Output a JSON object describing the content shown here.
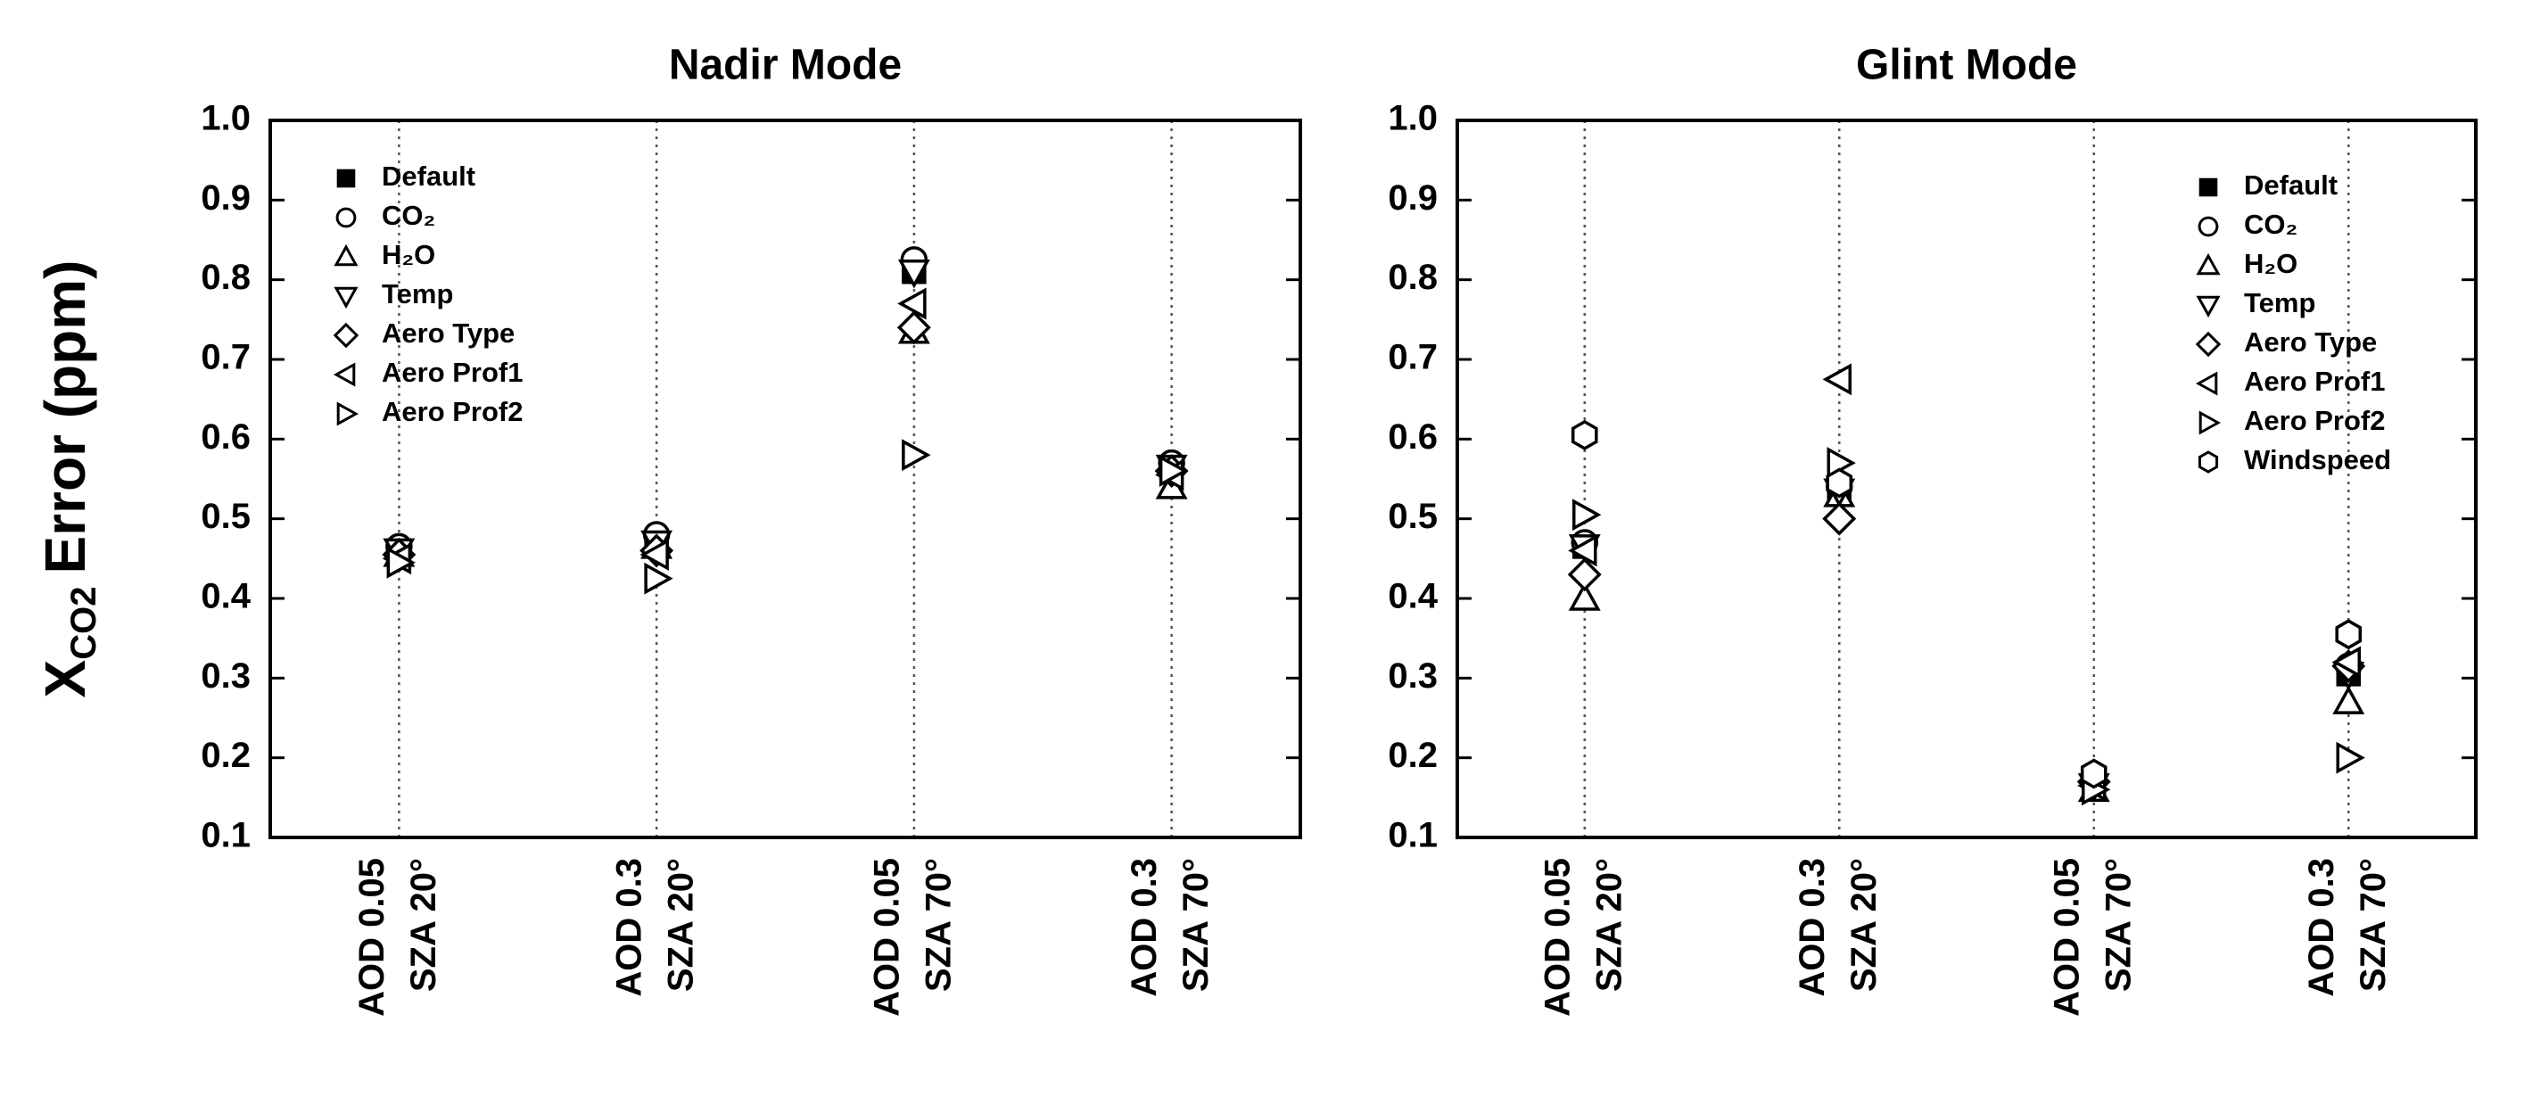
{
  "chart_data": [
    {
      "type": "scatter",
      "title": "Nadir Mode",
      "ylabel": [
        "X",
        "CO2",
        "Error (ppm)"
      ],
      "categories": [
        [
          "AOD 0.05",
          "SZA 20°"
        ],
        [
          "AOD 0.3",
          "SZA 20°"
        ],
        [
          "AOD 0.05",
          "SZA 70°"
        ],
        [
          "AOD 0.3",
          "SZA 70°"
        ]
      ],
      "ylim": [
        0.1,
        1
      ],
      "yticks": [
        0.1,
        0.2,
        0.3,
        0.4,
        0.5,
        0.6,
        0.7,
        0.8,
        0.9,
        {
          "value": 1,
          "label": "1.0"
        }
      ],
      "legend": "upper left",
      "series": [
        {
          "name": "Default",
          "color": "#000000",
          "marker": "square-filled",
          "values": [
            0.46,
            0.47,
            0.81,
            0.565
          ]
        },
        {
          "name": "CO₂",
          "color": "#000000",
          "marker": "circle",
          "values": [
            0.465,
            0.48,
            0.825,
            0.57
          ]
        },
        {
          "name": "H₂O",
          "color": "#000000",
          "marker": "triangle-up",
          "values": [
            0.455,
            0.465,
            0.735,
            0.54
          ]
        },
        {
          "name": "Temp",
          "color": "#000000",
          "marker": "triangle-down",
          "values": [
            0.46,
            0.47,
            0.81,
            0.565
          ]
        },
        {
          "name": "Aero Type",
          "color": "#000000",
          "marker": "diamond",
          "values": [
            0.455,
            0.46,
            0.74,
            0.56
          ]
        },
        {
          "name": "Aero Prof1",
          "color": "#000000",
          "marker": "triangle-left",
          "values": [
            0.45,
            0.455,
            0.77,
            0.555
          ]
        },
        {
          "name": "Aero Prof2",
          "color": "#000000",
          "marker": "triangle-right",
          "values": [
            0.445,
            0.425,
            0.58,
            0.56
          ]
        }
      ]
    },
    {
      "type": "scatter",
      "title": "Glint Mode",
      "categories": [
        [
          "AOD 0.05",
          "SZA 20°"
        ],
        [
          "AOD 0.3",
          "SZA 20°"
        ],
        [
          "AOD 0.05",
          "SZA 70°"
        ],
        [
          "AOD 0.3",
          "SZA 70°"
        ]
      ],
      "ylim": [
        0.1,
        1
      ],
      "yticks": [
        0.1,
        0.2,
        0.3,
        0.4,
        0.5,
        0.6,
        0.7,
        0.8,
        0.9,
        {
          "value": 1,
          "label": "1.0"
        }
      ],
      "legend": "upper right",
      "series": [
        {
          "name": "Default",
          "color": "#000000",
          "marker": "square-filled",
          "values": [
            0.465,
            0.535,
            0.165,
            0.305
          ]
        },
        {
          "name": "CO₂",
          "color": "#000000",
          "marker": "circle",
          "values": [
            0.47,
            0.54,
            0.175,
            0.315
          ]
        },
        {
          "name": "H₂O",
          "color": "#000000",
          "marker": "triangle-up",
          "values": [
            0.4,
            0.53,
            0.16,
            0.27
          ]
        },
        {
          "name": "Temp",
          "color": "#000000",
          "marker": "triangle-down",
          "values": [
            0.465,
            0.535,
            0.165,
            0.305
          ]
        },
        {
          "name": "Aero Type",
          "color": "#000000",
          "marker": "diamond",
          "values": [
            0.43,
            0.5,
            0.17,
            0.315
          ]
        },
        {
          "name": "Aero Prof1",
          "color": "#000000",
          "marker": "triangle-left",
          "values": [
            0.46,
            0.675,
            0.165,
            0.32
          ]
        },
        {
          "name": "Aero Prof2",
          "color": "#000000",
          "marker": "triangle-right",
          "values": [
            0.505,
            0.57,
            0.16,
            0.2
          ]
        },
        {
          "name": "Windspeed",
          "color": "#000000",
          "marker": "hexagon",
          "values": [
            0.605,
            0.545,
            0.18,
            0.355
          ]
        }
      ]
    }
  ]
}
